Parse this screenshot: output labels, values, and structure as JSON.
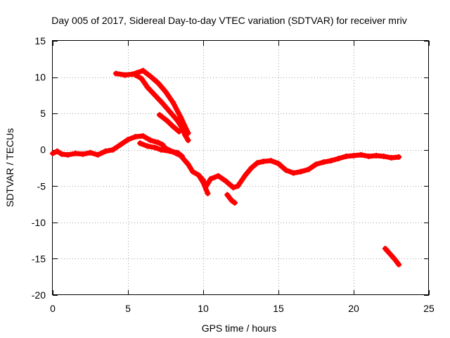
{
  "chart_data": {
    "type": "scatter",
    "title": "Day 005 of 2017, Sidereal Day-to-day VTEC variation (SDTVAR) for receiver mriv",
    "xlabel": "GPS time / hours",
    "ylabel": "SDTVAR / TECUs",
    "xlim": [
      0,
      25
    ],
    "ylim": [
      -20,
      15
    ],
    "xticks": [
      0,
      5,
      10,
      15,
      20,
      25
    ],
    "yticks": [
      15,
      10,
      5,
      0,
      -5,
      -10,
      -15,
      -20
    ],
    "xtick_labels": [
      "0",
      "5",
      "10",
      "15",
      "20",
      "25"
    ],
    "ytick_labels": [
      "15",
      "10",
      "5",
      "0",
      "-5",
      "-10",
      "-15",
      "-20"
    ],
    "grid": true,
    "marker_color": "#ff0000",
    "series": [
      {
        "name": "main-track",
        "points": [
          [
            0.0,
            -0.5
          ],
          [
            0.3,
            -0.2
          ],
          [
            0.6,
            -0.6
          ],
          [
            1.0,
            -0.7
          ],
          [
            1.5,
            -0.5
          ],
          [
            2.0,
            -0.6
          ],
          [
            2.5,
            -0.4
          ],
          [
            3.0,
            -0.7
          ],
          [
            3.5,
            -0.2
          ],
          [
            4.0,
            0.0
          ],
          [
            4.5,
            0.7
          ],
          [
            5.0,
            1.4
          ],
          [
            5.5,
            1.8
          ],
          [
            6.0,
            1.9
          ],
          [
            6.5,
            1.3
          ],
          [
            7.0,
            1.0
          ],
          [
            7.3,
            0.7
          ],
          [
            7.5,
            0.2
          ],
          [
            8.0,
            -0.3
          ],
          [
            8.5,
            -0.8
          ],
          [
            9.0,
            -2.0
          ],
          [
            9.3,
            -3.0
          ],
          [
            9.7,
            -3.5
          ],
          [
            10.0,
            -4.2
          ],
          [
            10.2,
            -5.0
          ],
          [
            10.5,
            -4.0
          ],
          [
            11.0,
            -3.6
          ],
          [
            11.5,
            -4.3
          ],
          [
            12.0,
            -5.2
          ],
          [
            12.3,
            -5.0
          ],
          [
            12.8,
            -3.5
          ],
          [
            13.2,
            -2.5
          ],
          [
            13.6,
            -1.8
          ],
          [
            14.0,
            -1.6
          ],
          [
            14.5,
            -1.5
          ],
          [
            15.0,
            -1.9
          ],
          [
            15.5,
            -2.8
          ],
          [
            16.0,
            -3.2
          ],
          [
            16.5,
            -3.0
          ],
          [
            17.0,
            -2.7
          ],
          [
            17.5,
            -2.0
          ],
          [
            18.0,
            -1.7
          ],
          [
            18.5,
            -1.5
          ],
          [
            19.0,
            -1.2
          ],
          [
            19.5,
            -0.9
          ],
          [
            20.0,
            -0.8
          ],
          [
            20.5,
            -0.7
          ],
          [
            21.0,
            -0.9
          ],
          [
            21.5,
            -0.8
          ],
          [
            22.0,
            -0.9
          ],
          [
            22.5,
            -1.1
          ],
          [
            23.0,
            -1.0
          ]
        ]
      },
      {
        "name": "branch-low",
        "points": [
          [
            5.8,
            0.9
          ],
          [
            6.3,
            0.5
          ],
          [
            6.8,
            0.3
          ],
          [
            7.2,
            0.0
          ],
          [
            7.8,
            -0.2
          ],
          [
            8.3,
            -0.4
          ],
          [
            8.6,
            -0.9
          ]
        ]
      },
      {
        "name": "drop-a",
        "points": [
          [
            9.7,
            -3.5
          ],
          [
            10.0,
            -4.5
          ],
          [
            10.3,
            -6.0
          ]
        ]
      },
      {
        "name": "drop-b",
        "points": [
          [
            11.6,
            -6.2
          ],
          [
            11.9,
            -7.0
          ],
          [
            12.1,
            -7.3
          ]
        ]
      },
      {
        "name": "arc-upper",
        "points": [
          [
            4.2,
            10.5
          ],
          [
            4.8,
            10.3
          ],
          [
            5.3,
            10.4
          ],
          [
            5.6,
            10.6
          ],
          [
            6.0,
            10.9
          ],
          [
            6.5,
            10.1
          ],
          [
            7.0,
            9.2
          ],
          [
            7.5,
            8.0
          ],
          [
            8.0,
            6.5
          ],
          [
            8.5,
            4.5
          ],
          [
            9.0,
            2.3
          ]
        ]
      },
      {
        "name": "arc-lower",
        "points": [
          [
            5.5,
            10.3
          ],
          [
            5.9,
            9.8
          ],
          [
            6.3,
            8.6
          ],
          [
            6.8,
            7.5
          ],
          [
            7.3,
            6.4
          ],
          [
            7.8,
            5.2
          ],
          [
            8.3,
            4.0
          ],
          [
            8.6,
            3.0
          ],
          [
            8.8,
            2.0
          ],
          [
            9.0,
            1.3
          ]
        ]
      },
      {
        "name": "arc-inner",
        "points": [
          [
            7.1,
            4.8
          ],
          [
            7.6,
            4.0
          ],
          [
            8.0,
            3.2
          ],
          [
            8.4,
            2.5
          ]
        ]
      },
      {
        "name": "late-segment",
        "points": [
          [
            22.1,
            -13.6
          ],
          [
            22.4,
            -14.3
          ],
          [
            22.7,
            -15.0
          ],
          [
            23.0,
            -15.8
          ]
        ]
      }
    ]
  }
}
